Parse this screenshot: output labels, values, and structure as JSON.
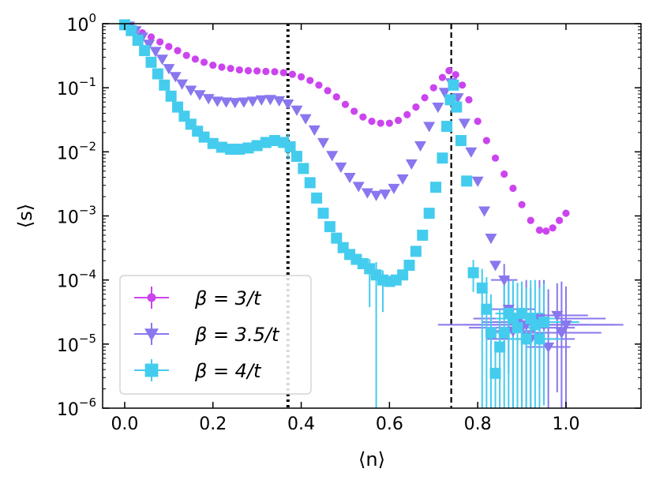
{
  "chart_data": {
    "type": "scatter",
    "xlabel": "⟨n⟩",
    "ylabel": "⟨s⟩",
    "xlim": [
      -0.05,
      1.17
    ],
    "ylim_log10": [
      -6,
      0
    ],
    "yscale": "log",
    "x_ticks": [
      0.0,
      0.2,
      0.4,
      0.6,
      0.8,
      1.0
    ],
    "x_tick_labels": [
      "0.0",
      "0.2",
      "0.4",
      "0.6",
      "0.8",
      "1.0"
    ],
    "y_ticks_log10": [
      -6,
      -5,
      -4,
      -3,
      -2,
      -1,
      0
    ],
    "y_tick_labels": [
      {
        "base": "10",
        "exp": "−6"
      },
      {
        "base": "10",
        "exp": "−5"
      },
      {
        "base": "10",
        "exp": "−4"
      },
      {
        "base": "10",
        "exp": "−3"
      },
      {
        "base": "10",
        "exp": "−2"
      },
      {
        "base": "10",
        "exp": "−1"
      },
      {
        "base": "10",
        "exp": "0"
      }
    ],
    "vlines": [
      {
        "x": 0.37,
        "style": "dotted"
      },
      {
        "x": 0.74,
        "style": "dashed"
      }
    ],
    "legend_position": "lower-left",
    "series": [
      {
        "name": "β = 3/t",
        "color": "#cc44ee",
        "marker": "circle",
        "points": [
          [
            0.0,
            0.95
          ],
          [
            0.02,
            0.85
          ],
          [
            0.04,
            0.72
          ],
          [
            0.06,
            0.62
          ],
          [
            0.08,
            0.52
          ],
          [
            0.1,
            0.44
          ],
          [
            0.12,
            0.38
          ],
          [
            0.14,
            0.32
          ],
          [
            0.16,
            0.28
          ],
          [
            0.18,
            0.25
          ],
          [
            0.2,
            0.225
          ],
          [
            0.22,
            0.21
          ],
          [
            0.24,
            0.2
          ],
          [
            0.26,
            0.19
          ],
          [
            0.28,
            0.185
          ],
          [
            0.3,
            0.183
          ],
          [
            0.32,
            0.18
          ],
          [
            0.34,
            0.178
          ],
          [
            0.36,
            0.172
          ],
          [
            0.38,
            0.162
          ],
          [
            0.4,
            0.148
          ],
          [
            0.42,
            0.13
          ],
          [
            0.44,
            0.11
          ],
          [
            0.46,
            0.09
          ],
          [
            0.48,
            0.072
          ],
          [
            0.5,
            0.055
          ],
          [
            0.52,
            0.043
          ],
          [
            0.54,
            0.035
          ],
          [
            0.56,
            0.03
          ],
          [
            0.58,
            0.028
          ],
          [
            0.6,
            0.028
          ],
          [
            0.62,
            0.031
          ],
          [
            0.64,
            0.038
          ],
          [
            0.66,
            0.05
          ],
          [
            0.68,
            0.07
          ],
          [
            0.7,
            0.1
          ],
          [
            0.72,
            0.145
          ],
          [
            0.735,
            0.185
          ],
          [
            0.75,
            0.16
          ],
          [
            0.765,
            0.11
          ],
          [
            0.78,
            0.065
          ],
          [
            0.8,
            0.03
          ],
          [
            0.82,
            0.015
          ],
          [
            0.84,
            0.008
          ],
          [
            0.86,
            0.0045
          ],
          [
            0.88,
            0.0027
          ],
          [
            0.9,
            0.0015
          ],
          [
            0.92,
            0.00085
          ],
          [
            0.94,
            0.0006
          ],
          [
            0.955,
            0.00058
          ],
          [
            0.97,
            0.00065
          ],
          [
            0.985,
            0.00085
          ],
          [
            1.0,
            0.0011
          ]
        ],
        "errors": []
      },
      {
        "name": "β = 3.5/t",
        "color": "#8877ee",
        "marker": "triangle-down",
        "points": [
          [
            0.01,
            0.92
          ],
          [
            0.025,
            0.78
          ],
          [
            0.04,
            0.62
          ],
          [
            0.055,
            0.48
          ],
          [
            0.07,
            0.37
          ],
          [
            0.085,
            0.28
          ],
          [
            0.1,
            0.2
          ],
          [
            0.115,
            0.15
          ],
          [
            0.13,
            0.115
          ],
          [
            0.15,
            0.092
          ],
          [
            0.17,
            0.078
          ],
          [
            0.19,
            0.068
          ],
          [
            0.21,
            0.062
          ],
          [
            0.23,
            0.06
          ],
          [
            0.25,
            0.059
          ],
          [
            0.27,
            0.06
          ],
          [
            0.29,
            0.062
          ],
          [
            0.31,
            0.065
          ],
          [
            0.33,
            0.066
          ],
          [
            0.35,
            0.063
          ],
          [
            0.37,
            0.056
          ],
          [
            0.39,
            0.045
          ],
          [
            0.41,
            0.033
          ],
          [
            0.43,
            0.022
          ],
          [
            0.45,
            0.014
          ],
          [
            0.47,
            0.0088
          ],
          [
            0.49,
            0.0058
          ],
          [
            0.51,
            0.004
          ],
          [
            0.53,
            0.0029
          ],
          [
            0.55,
            0.0023
          ],
          [
            0.57,
            0.0021
          ],
          [
            0.59,
            0.0022
          ],
          [
            0.61,
            0.0027
          ],
          [
            0.63,
            0.0038
          ],
          [
            0.65,
            0.0065
          ],
          [
            0.67,
            0.0125
          ],
          [
            0.69,
            0.025
          ],
          [
            0.71,
            0.05
          ],
          [
            0.725,
            0.085
          ],
          [
            0.74,
            0.12
          ],
          [
            0.755,
            0.07
          ],
          [
            0.77,
            0.028
          ],
          [
            0.785,
            0.01
          ],
          [
            0.8,
            0.0035
          ],
          [
            0.815,
            0.0012
          ],
          [
            0.83,
            0.00045
          ],
          [
            0.84,
            0.00017
          ],
          [
            0.86,
            0.0001
          ],
          [
            0.87,
            3.5e-05
          ],
          [
            0.88,
            1.6e-05
          ],
          [
            0.89,
            2.2e-05
          ],
          [
            0.9,
            1.8e-05
          ],
          [
            0.91,
            2e-05
          ],
          [
            0.92,
            1.2e-05
          ],
          [
            0.94,
            2.5e-05
          ],
          [
            0.95,
            2e-05
          ],
          [
            0.96,
            9e-06
          ],
          [
            0.98,
            2.8e-05
          ],
          [
            0.99,
            1.5e-05
          ],
          [
            1.0,
            2e-05
          ]
        ],
        "errors": [
          {
            "x": 0.86,
            "y": 0.0001,
            "xerr": 0.03,
            "yerr_down_log": 0.6,
            "yerr_up_log": 0.25
          },
          {
            "x": 0.87,
            "y": 3.5e-05,
            "xerr": 0.06,
            "yerr_down_log": 1.0,
            "yerr_up_log": 0.5
          },
          {
            "x": 0.88,
            "y": 1.6e-05,
            "xerr": 0.05,
            "yerr_down_log": 1.2,
            "yerr_up_log": 0.7
          },
          {
            "x": 0.89,
            "y": 2.2e-05,
            "xerr": 0.08,
            "yerr_down_log": 1.1,
            "yerr_up_log": 0.6
          },
          {
            "x": 0.9,
            "y": 1.8e-05,
            "xerr": 0.12,
            "yerr_down_log": 1.2,
            "yerr_up_log": 0.6
          },
          {
            "x": 0.91,
            "y": 2e-05,
            "xerr": 0.2,
            "yerr_down_log": 1.3,
            "yerr_up_log": 0.7
          },
          {
            "x": 0.92,
            "y": 1.2e-05,
            "xerr": 0.1,
            "yerr_down_log": 1.2,
            "yerr_up_log": 0.8
          },
          {
            "x": 0.94,
            "y": 2.5e-05,
            "xerr": 0.15,
            "yerr_down_log": 1.1,
            "yerr_up_log": 0.6
          },
          {
            "x": 0.95,
            "y": 2e-05,
            "xerr": 0.18,
            "yerr_down_log": 1.2,
            "yerr_up_log": 0.7
          },
          {
            "x": 0.96,
            "y": 9e-06,
            "xerr": 0.05,
            "yerr_down_log": 1.0,
            "yerr_up_log": 0.9
          },
          {
            "x": 0.98,
            "y": 2.8e-05,
            "xerr": 0.07,
            "yerr_down_log": 1.2,
            "yerr_up_log": 0.5
          },
          {
            "x": 0.99,
            "y": 1.5e-05,
            "xerr": 0.09,
            "yerr_down_log": 1.2,
            "yerr_up_log": 0.8
          },
          {
            "x": 1.0,
            "y": 2e-05,
            "xerr": 0.05,
            "yerr_down_log": 1.3,
            "yerr_up_log": 0.6
          }
        ]
      },
      {
        "name": "β = 4/t",
        "color": "#44ccee",
        "marker": "square",
        "points": [
          [
            0.0,
            0.96
          ],
          [
            0.015,
            0.78
          ],
          [
            0.03,
            0.55
          ],
          [
            0.045,
            0.38
          ],
          [
            0.06,
            0.25
          ],
          [
            0.075,
            0.165
          ],
          [
            0.09,
            0.11
          ],
          [
            0.105,
            0.074
          ],
          [
            0.12,
            0.05
          ],
          [
            0.135,
            0.036
          ],
          [
            0.15,
            0.027
          ],
          [
            0.165,
            0.021
          ],
          [
            0.18,
            0.017
          ],
          [
            0.2,
            0.0135
          ],
          [
            0.22,
            0.0118
          ],
          [
            0.24,
            0.011
          ],
          [
            0.26,
            0.011
          ],
          [
            0.28,
            0.0115
          ],
          [
            0.3,
            0.0125
          ],
          [
            0.32,
            0.014
          ],
          [
            0.34,
            0.015
          ],
          [
            0.36,
            0.014
          ],
          [
            0.375,
            0.012
          ],
          [
            0.39,
            0.0085
          ],
          [
            0.405,
            0.0055
          ],
          [
            0.42,
            0.0033
          ],
          [
            0.435,
            0.0019
          ],
          [
            0.45,
            0.0011
          ],
          [
            0.465,
            0.00068
          ],
          [
            0.48,
            0.00045
          ],
          [
            0.495,
            0.00032
          ],
          [
            0.51,
            0.00025
          ],
          [
            0.525,
            0.00021
          ],
          [
            0.54,
            0.00018
          ],
          [
            0.555,
            0.00015
          ],
          [
            0.57,
            0.00012
          ],
          [
            0.585,
            0.0001
          ],
          [
            0.6,
            9.5e-05
          ],
          [
            0.615,
            0.0001
          ],
          [
            0.63,
            0.00012
          ],
          [
            0.645,
            0.00017
          ],
          [
            0.66,
            0.00028
          ],
          [
            0.675,
            0.0005
          ],
          [
            0.69,
            0.0011
          ],
          [
            0.705,
            0.0028
          ],
          [
            0.72,
            0.008
          ],
          [
            0.73,
            0.025
          ],
          [
            0.738,
            0.065
          ],
          [
            0.745,
            0.11
          ],
          [
            0.752,
            0.05
          ],
          [
            0.762,
            0.015
          ],
          [
            0.775,
            0.0035
          ],
          [
            0.79,
            0.00013
          ],
          [
            0.81,
            7.5e-05
          ],
          [
            0.82,
            3.5e-05
          ],
          [
            0.83,
            1.5e-05
          ],
          [
            0.84,
            3.5e-06
          ],
          [
            0.85,
            9e-06
          ],
          [
            0.86,
            1.5e-05
          ],
          [
            0.87,
            3e-05
          ],
          [
            0.88,
            2.5e-05
          ],
          [
            0.89,
            1.8e-05
          ],
          [
            0.9,
            3e-05
          ],
          [
            0.91,
            1.2e-05
          ],
          [
            0.92,
            2.5e-05
          ],
          [
            0.93,
            2e-05
          ],
          [
            0.94,
            1.2e-05
          ],
          [
            0.95,
            2.2e-05
          ]
        ],
        "errors": [
          {
            "x": 0.37,
            "y": 0.012,
            "xerr": 0,
            "yerr_down_log": 0.2,
            "yerr_up_log": 0.2
          },
          {
            "x": 0.555,
            "y": 0.00015,
            "xerr": 0,
            "yerr_down_log": 0.6,
            "yerr_up_log": 0.15
          },
          {
            "x": 0.57,
            "y": 0.00012,
            "xerr": 0,
            "yerr_down_log": 3.0,
            "yerr_up_log": 0.2
          },
          {
            "x": 0.585,
            "y": 0.0001,
            "xerr": 0,
            "yerr_down_log": 0.5,
            "yerr_up_log": 0.15
          },
          {
            "x": 0.79,
            "y": 0.00013,
            "xerr": 0,
            "yerr_down_log": 0.3,
            "yerr_up_log": 0.2
          },
          {
            "x": 0.81,
            "y": 7.5e-05,
            "xerr": 0,
            "yerr_down_log": 2.0,
            "yerr_up_log": 0.3
          },
          {
            "x": 0.82,
            "y": 3.5e-05,
            "xerr": 0,
            "yerr_down_log": 1.6,
            "yerr_up_log": 0.5
          },
          {
            "x": 0.83,
            "y": 1.5e-05,
            "xerr": 0,
            "yerr_down_log": 1.2,
            "yerr_up_log": 0.6
          },
          {
            "x": 0.84,
            "y": 3.5e-06,
            "xerr": 0.01,
            "yerr_down_log": 0.6,
            "yerr_up_log": 0.5
          },
          {
            "x": 0.85,
            "y": 9e-06,
            "xerr": 0,
            "yerr_down_log": 1.0,
            "yerr_up_log": 0.6
          },
          {
            "x": 0.86,
            "y": 1.5e-05,
            "xerr": 0.02,
            "yerr_down_log": 1.2,
            "yerr_up_log": 0.8
          },
          {
            "x": 0.87,
            "y": 3e-05,
            "xerr": 0.03,
            "yerr_down_log": 1.5,
            "yerr_up_log": 0.5
          },
          {
            "x": 0.88,
            "y": 2.5e-05,
            "xerr": 0.04,
            "yerr_down_log": 1.4,
            "yerr_up_log": 0.6
          },
          {
            "x": 0.89,
            "y": 1.8e-05,
            "xerr": 0.03,
            "yerr_down_log": 1.3,
            "yerr_up_log": 0.7
          },
          {
            "x": 0.9,
            "y": 3e-05,
            "xerr": 0.05,
            "yerr_down_log": 1.5,
            "yerr_up_log": 0.5
          },
          {
            "x": 0.91,
            "y": 1.2e-05,
            "xerr": 0.04,
            "yerr_down_log": 1.1,
            "yerr_up_log": 0.8
          },
          {
            "x": 0.92,
            "y": 2.5e-05,
            "xerr": 0.06,
            "yerr_down_log": 1.4,
            "yerr_up_log": 0.6
          },
          {
            "x": 0.93,
            "y": 2e-05,
            "xerr": 0.03,
            "yerr_down_log": 1.3,
            "yerr_up_log": 0.7
          },
          {
            "x": 0.94,
            "y": 1.2e-05,
            "xerr": 0.05,
            "yerr_down_log": 1.1,
            "yerr_up_log": 0.8
          },
          {
            "x": 0.95,
            "y": 2.2e-05,
            "xerr": 0.08,
            "yerr_down_log": 1.3,
            "yerr_up_log": 0.6
          }
        ]
      }
    ]
  }
}
